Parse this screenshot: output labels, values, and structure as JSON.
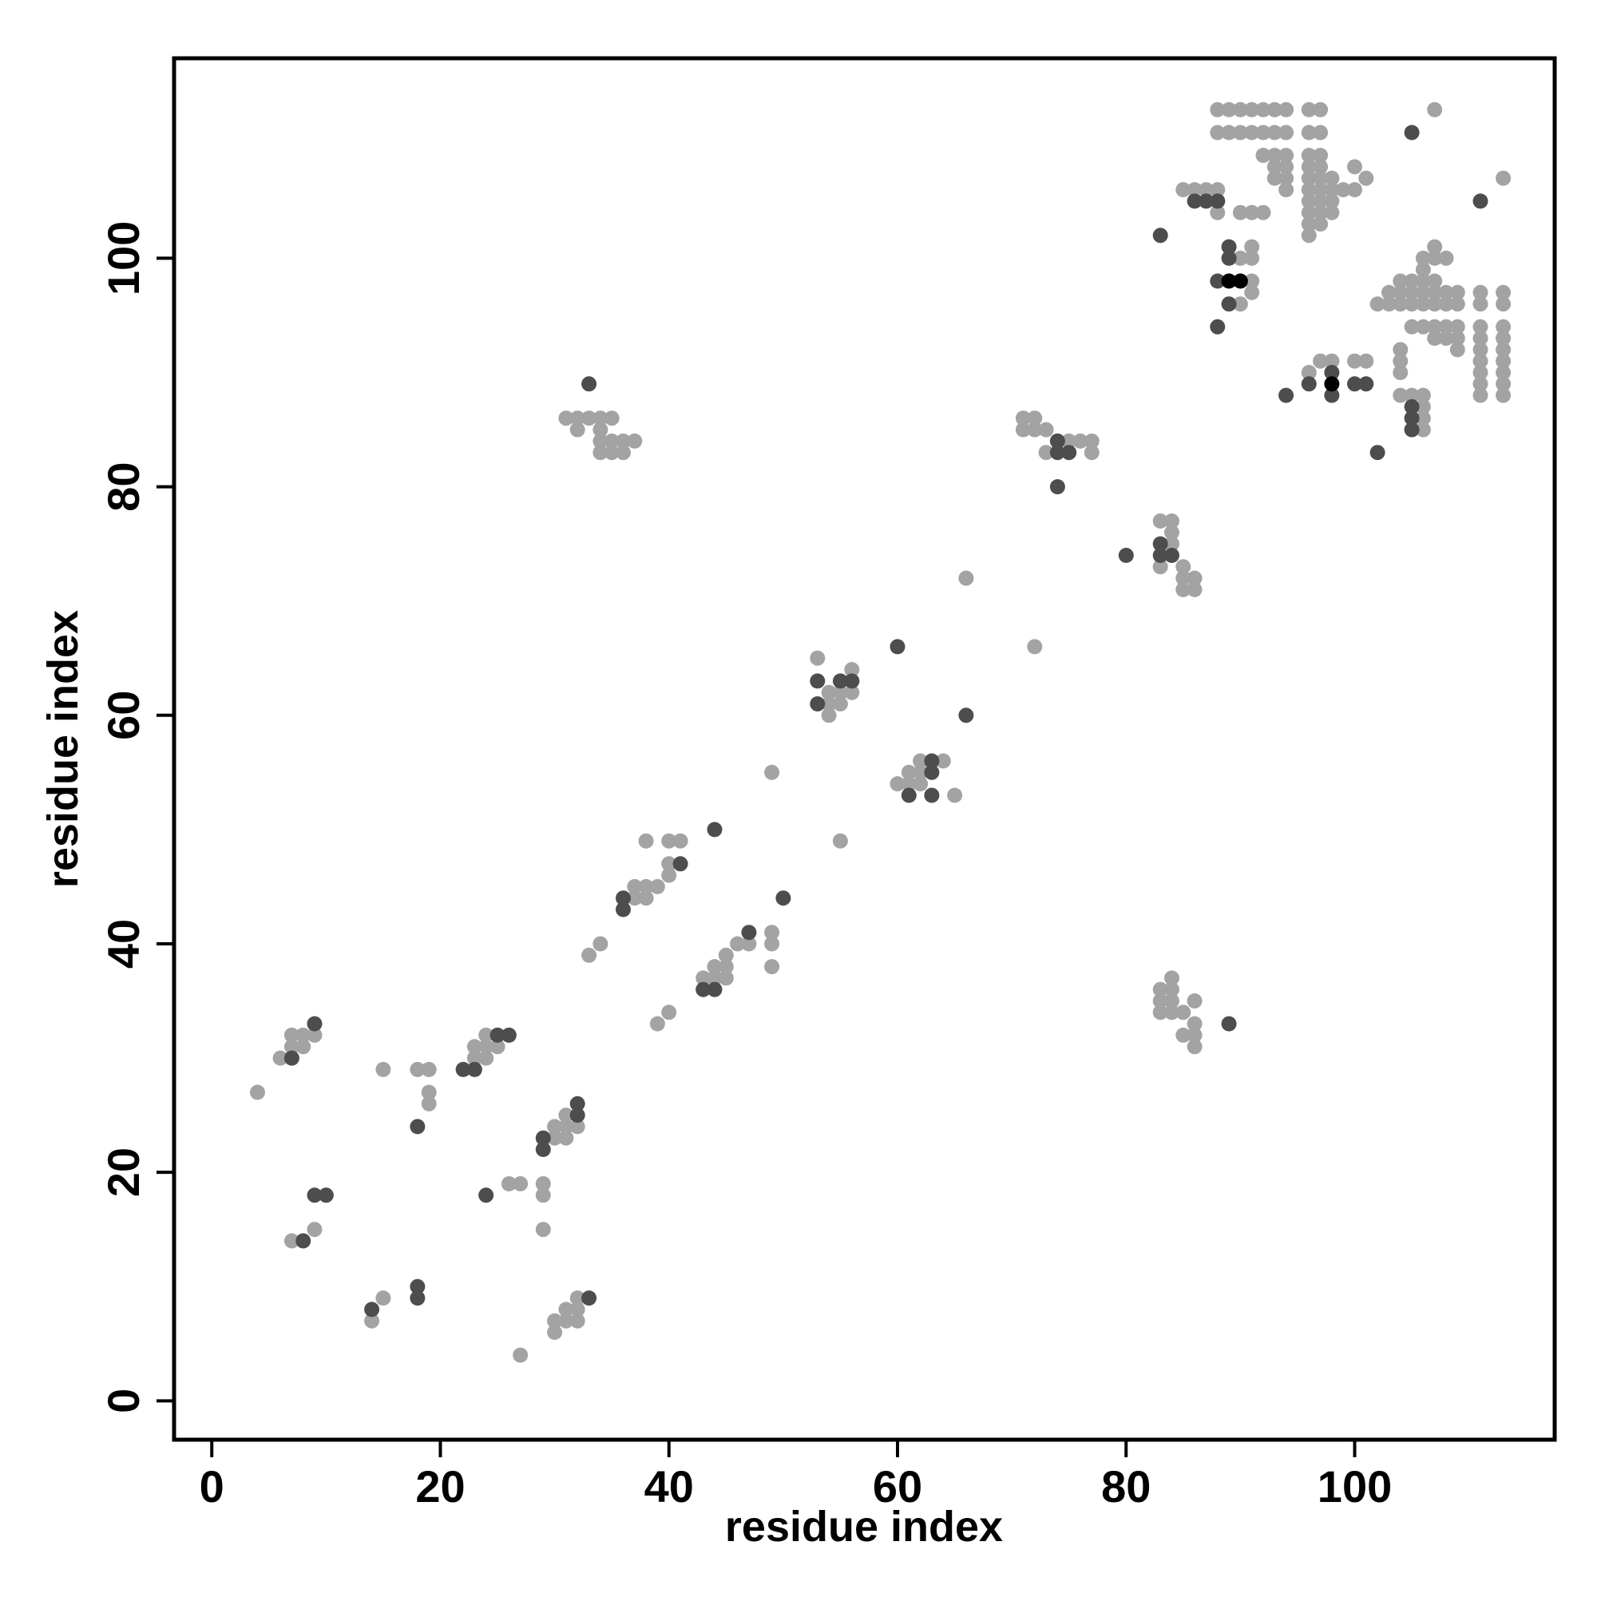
{
  "chart_data": {
    "type": "scatter",
    "title": "",
    "xlabel": "residue index",
    "ylabel": "residue index",
    "xlim": [
      -3.3,
      117.5
    ],
    "ylim": [
      -3.4,
      117.5
    ],
    "xticks": [
      0,
      20,
      40,
      60,
      80,
      100
    ],
    "yticks": [
      0,
      20,
      40,
      60,
      80,
      100
    ],
    "grid": false,
    "legend": "none",
    "colors": {
      "light": "#a3a3a3",
      "dark": "#4d4d4d",
      "black": "#000000"
    },
    "series": [
      {
        "color_key": "light",
        "points": [
          [
            4,
            27
          ],
          [
            6,
            30
          ],
          [
            7,
            31
          ],
          [
            7,
            32
          ],
          [
            8,
            31
          ],
          [
            8,
            32
          ],
          [
            9,
            32
          ],
          [
            7,
            14
          ],
          [
            9,
            15
          ],
          [
            14,
            7
          ],
          [
            15,
            9
          ],
          [
            15,
            29
          ],
          [
            18,
            29
          ],
          [
            19,
            29
          ],
          [
            19,
            27
          ],
          [
            19,
            26
          ],
          [
            23,
            30
          ],
          [
            23,
            31
          ],
          [
            24,
            30
          ],
          [
            24,
            31
          ],
          [
            24,
            32
          ],
          [
            25,
            31
          ],
          [
            26,
            19
          ],
          [
            27,
            19
          ],
          [
            27,
            4
          ],
          [
            29,
            19
          ],
          [
            29,
            18
          ],
          [
            29,
            15
          ],
          [
            30,
            23
          ],
          [
            30,
            24
          ],
          [
            31,
            23
          ],
          [
            31,
            24
          ],
          [
            31,
            25
          ],
          [
            32,
            24
          ],
          [
            30,
            7
          ],
          [
            30,
            6
          ],
          [
            31,
            7
          ],
          [
            31,
            8
          ],
          [
            32,
            7
          ],
          [
            32,
            8
          ],
          [
            32,
            9
          ],
          [
            33,
            39
          ],
          [
            34,
            40
          ],
          [
            37,
            44
          ],
          [
            37,
            45
          ],
          [
            38,
            44
          ],
          [
            38,
            45
          ],
          [
            38,
            49
          ],
          [
            39,
            45
          ],
          [
            39,
            33
          ],
          [
            40,
            49
          ],
          [
            41,
            49
          ],
          [
            40,
            47
          ],
          [
            40,
            46
          ],
          [
            40,
            34
          ],
          [
            43,
            37
          ],
          [
            44,
            37
          ],
          [
            44,
            38
          ],
          [
            45,
            37
          ],
          [
            45,
            38
          ],
          [
            45,
            39
          ],
          [
            46,
            40
          ],
          [
            47,
            40
          ],
          [
            49,
            41
          ],
          [
            49,
            40
          ],
          [
            49,
            38
          ],
          [
            49,
            55
          ],
          [
            55,
            49
          ],
          [
            31,
            86
          ],
          [
            32,
            85
          ],
          [
            32,
            86
          ],
          [
            33,
            86
          ],
          [
            34,
            86
          ],
          [
            34,
            85
          ],
          [
            34,
            84
          ],
          [
            34,
            83
          ],
          [
            35,
            86
          ],
          [
            35,
            84
          ],
          [
            35,
            83
          ],
          [
            36,
            84
          ],
          [
            36,
            83
          ],
          [
            37,
            84
          ],
          [
            53,
            65
          ],
          [
            54,
            62
          ],
          [
            54,
            61
          ],
          [
            54,
            60
          ],
          [
            55,
            62
          ],
          [
            55,
            61
          ],
          [
            56,
            62
          ],
          [
            56,
            63
          ],
          [
            56,
            64
          ],
          [
            60,
            54
          ],
          [
            61,
            54
          ],
          [
            61,
            55
          ],
          [
            62,
            55
          ],
          [
            62,
            56
          ],
          [
            62,
            54
          ],
          [
            64,
            56
          ],
          [
            65,
            53
          ],
          [
            66,
            72
          ],
          [
            72,
            66
          ],
          [
            71,
            86
          ],
          [
            71,
            85
          ],
          [
            72,
            86
          ],
          [
            72,
            85
          ],
          [
            73,
            85
          ],
          [
            73,
            83
          ],
          [
            74,
            84
          ],
          [
            75,
            84
          ],
          [
            76,
            84
          ],
          [
            77,
            84
          ],
          [
            77,
            83
          ],
          [
            83,
            77
          ],
          [
            83,
            73
          ],
          [
            84,
            77
          ],
          [
            84,
            76
          ],
          [
            84,
            75
          ],
          [
            85,
            73
          ],
          [
            85,
            72
          ],
          [
            85,
            71
          ],
          [
            86,
            72
          ],
          [
            86,
            71
          ],
          [
            83,
            36
          ],
          [
            83,
            35
          ],
          [
            83,
            34
          ],
          [
            84,
            37
          ],
          [
            84,
            36
          ],
          [
            84,
            35
          ],
          [
            84,
            34
          ],
          [
            85,
            34
          ],
          [
            85,
            32
          ],
          [
            86,
            35
          ],
          [
            86,
            33
          ],
          [
            86,
            32
          ],
          [
            86,
            31
          ],
          [
            88,
            113
          ],
          [
            89,
            113
          ],
          [
            90,
            113
          ],
          [
            91,
            113
          ],
          [
            92,
            113
          ],
          [
            93,
            113
          ],
          [
            94,
            113
          ],
          [
            96,
            113
          ],
          [
            97,
            113
          ],
          [
            88,
            111
          ],
          [
            89,
            111
          ],
          [
            90,
            111
          ],
          [
            91,
            111
          ],
          [
            92,
            111
          ],
          [
            93,
            111
          ],
          [
            94,
            111
          ],
          [
            96,
            111
          ],
          [
            97,
            111
          ],
          [
            92,
            109
          ],
          [
            93,
            109
          ],
          [
            93,
            108
          ],
          [
            94,
            109
          ],
          [
            94,
            108
          ],
          [
            94,
            107
          ],
          [
            93,
            107
          ],
          [
            94,
            106
          ],
          [
            96,
            109
          ],
          [
            96,
            108
          ],
          [
            96,
            107
          ],
          [
            96,
            106
          ],
          [
            96,
            105
          ],
          [
            96,
            104
          ],
          [
            96,
            103
          ],
          [
            96,
            102
          ],
          [
            97,
            109
          ],
          [
            97,
            108
          ],
          [
            97,
            107
          ],
          [
            97,
            106
          ],
          [
            97,
            105
          ],
          [
            97,
            104
          ],
          [
            97,
            103
          ],
          [
            98,
            107
          ],
          [
            98,
            106
          ],
          [
            98,
            105
          ],
          [
            98,
            104
          ],
          [
            99,
            106
          ],
          [
            100,
            108
          ],
          [
            100,
            106
          ],
          [
            101,
            107
          ],
          [
            107,
            113
          ],
          [
            85,
            106
          ],
          [
            86,
            106
          ],
          [
            87,
            106
          ],
          [
            88,
            106
          ],
          [
            88,
            105
          ],
          [
            88,
            104
          ],
          [
            90,
            104
          ],
          [
            91,
            104
          ],
          [
            92,
            104
          ],
          [
            90,
            100
          ],
          [
            91,
            101
          ],
          [
            91,
            100
          ],
          [
            91,
            98
          ],
          [
            91,
            97
          ],
          [
            90,
            96
          ],
          [
            102,
            96
          ],
          [
            103,
            96
          ],
          [
            103,
            97
          ],
          [
            104,
            98
          ],
          [
            104,
            97
          ],
          [
            104,
            96
          ],
          [
            105,
            98
          ],
          [
            105,
            97
          ],
          [
            105,
            96
          ],
          [
            106,
            99
          ],
          [
            106,
            98
          ],
          [
            106,
            97
          ],
          [
            106,
            96
          ],
          [
            106,
            100
          ],
          [
            107,
            101
          ],
          [
            107,
            100
          ],
          [
            107,
            98
          ],
          [
            107,
            97
          ],
          [
            107,
            96
          ],
          [
            108,
            100
          ],
          [
            108,
            97
          ],
          [
            108,
            96
          ],
          [
            108,
            94
          ],
          [
            108,
            93
          ],
          [
            109,
            97
          ],
          [
            109,
            96
          ],
          [
            109,
            94
          ],
          [
            109,
            93
          ],
          [
            109,
            92
          ],
          [
            105,
            94
          ],
          [
            106,
            94
          ],
          [
            107,
            94
          ],
          [
            107,
            93
          ],
          [
            111,
            97
          ],
          [
            111,
            96
          ],
          [
            111,
            94
          ],
          [
            111,
            93
          ],
          [
            111,
            92
          ],
          [
            111,
            91
          ],
          [
            111,
            90
          ],
          [
            111,
            89
          ],
          [
            111,
            88
          ],
          [
            113,
            97
          ],
          [
            113,
            96
          ],
          [
            113,
            94
          ],
          [
            113,
            93
          ],
          [
            113,
            92
          ],
          [
            113,
            91
          ],
          [
            113,
            90
          ],
          [
            113,
            89
          ],
          [
            113,
            88
          ],
          [
            113,
            107
          ],
          [
            96,
            90
          ],
          [
            97,
            91
          ],
          [
            98,
            91
          ],
          [
            100,
            91
          ],
          [
            101,
            91
          ],
          [
            104,
            92
          ],
          [
            104,
            91
          ],
          [
            104,
            90
          ],
          [
            104,
            88
          ],
          [
            105,
            88
          ],
          [
            106,
            88
          ],
          [
            106,
            87
          ],
          [
            106,
            86
          ],
          [
            106,
            85
          ]
        ]
      },
      {
        "color_key": "dark",
        "points": [
          [
            7,
            30
          ],
          [
            9,
            33
          ],
          [
            9,
            18
          ],
          [
            10,
            18
          ],
          [
            8,
            14
          ],
          [
            14,
            8
          ],
          [
            18,
            24
          ],
          [
            18,
            10
          ],
          [
            18,
            9
          ],
          [
            22,
            29
          ],
          [
            23,
            29
          ],
          [
            24,
            18
          ],
          [
            25,
            32
          ],
          [
            26,
            32
          ],
          [
            29,
            23
          ],
          [
            29,
            22
          ],
          [
            32,
            26
          ],
          [
            32,
            25
          ],
          [
            33,
            9
          ],
          [
            33,
            89
          ],
          [
            36,
            44
          ],
          [
            36,
            43
          ],
          [
            41,
            47
          ],
          [
            43,
            36
          ],
          [
            44,
            36
          ],
          [
            44,
            50
          ],
          [
            47,
            41
          ],
          [
            50,
            44
          ],
          [
            53,
            63
          ],
          [
            53,
            61
          ],
          [
            55,
            63
          ],
          [
            56,
            63
          ],
          [
            60,
            66
          ],
          [
            61,
            53
          ],
          [
            63,
            56
          ],
          [
            63,
            55
          ],
          [
            63,
            53
          ],
          [
            66,
            60
          ],
          [
            74,
            84
          ],
          [
            74,
            83
          ],
          [
            75,
            83
          ],
          [
            74,
            80
          ],
          [
            80,
            74
          ],
          [
            83,
            75
          ],
          [
            83,
            74
          ],
          [
            84,
            74
          ],
          [
            89,
            33
          ],
          [
            83,
            102
          ],
          [
            86,
            105
          ],
          [
            87,
            105
          ],
          [
            88,
            105
          ],
          [
            88,
            98
          ],
          [
            89,
            101
          ],
          [
            89,
            100
          ],
          [
            88,
            94
          ],
          [
            89,
            96
          ],
          [
            94,
            88
          ],
          [
            96,
            89
          ],
          [
            98,
            90
          ],
          [
            98,
            88
          ],
          [
            100,
            89
          ],
          [
            101,
            89
          ],
          [
            102,
            83
          ],
          [
            105,
            111
          ],
          [
            111,
            105
          ],
          [
            105,
            87
          ],
          [
            105,
            86
          ],
          [
            105,
            85
          ]
        ]
      },
      {
        "color_key": "black",
        "points": [
          [
            89,
            98
          ],
          [
            90,
            98
          ],
          [
            98,
            89
          ]
        ]
      }
    ]
  }
}
